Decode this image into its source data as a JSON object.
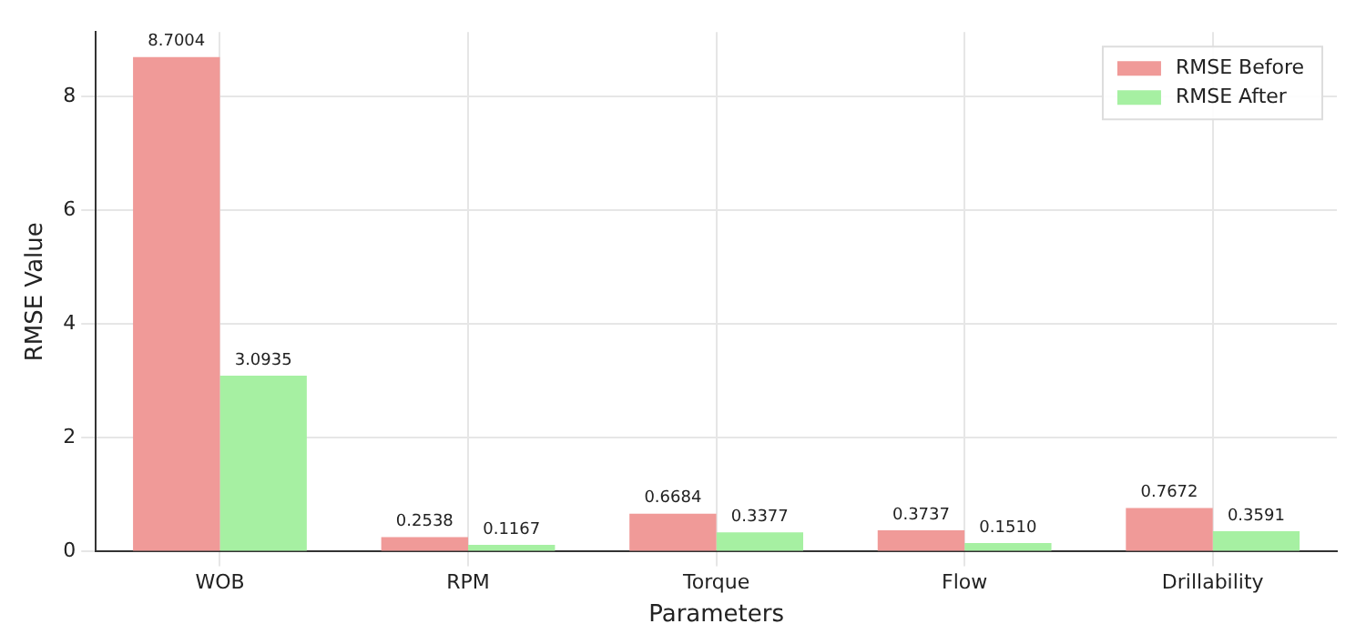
{
  "chart_data": {
    "type": "bar",
    "xlabel": "Parameters",
    "ylabel": "RMSE Value",
    "categories": [
      "WOB",
      "RPM",
      "Torque",
      "Flow",
      "Drillability"
    ],
    "series": [
      {
        "name": "RMSE Before",
        "color": "#f09a98",
        "values": [
          8.7004,
          0.2538,
          0.6684,
          0.3737,
          0.7672
        ],
        "value_labels": [
          "8.7004",
          "0.2538",
          "0.6684",
          "0.3737",
          "0.7672"
        ]
      },
      {
        "name": "RMSE After",
        "color": "#a6f0a2",
        "values": [
          3.0935,
          0.1167,
          0.3377,
          0.151,
          0.3591
        ],
        "value_labels": [
          "3.0935",
          "0.1167",
          "0.3377",
          "0.1510",
          "0.3591"
        ]
      }
    ],
    "ylim": [
      0,
      9.14
    ],
    "yticks": [
      0,
      2,
      4,
      6,
      8
    ],
    "grid": true,
    "legend": "top right"
  }
}
